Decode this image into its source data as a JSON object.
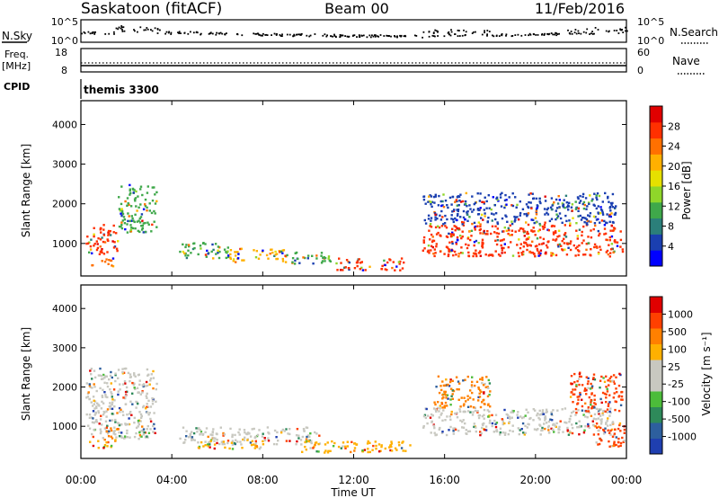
{
  "header": {
    "station": "Saskatoon (fitACF)",
    "beam": "Beam 00",
    "date": "11/Feb/2016"
  },
  "noise_panel": {
    "left_label": "N.Sky",
    "right_label": "N.Search",
    "left_ticks": [
      "10^5",
      "10^0"
    ],
    "right_ticks": [
      "10^5",
      "10^0"
    ]
  },
  "freq_panel": {
    "left_label_1": "Freq.",
    "left_label_2": "[MHz]",
    "right_label": "Nave",
    "left_ticks": [
      "18",
      "8"
    ],
    "right_ticks": [
      "60",
      "0"
    ]
  },
  "cpid_panel": {
    "label": "CPID",
    "value": "themis 3300"
  },
  "x_axis": {
    "ticks": [
      "00:00",
      "04:00",
      "08:00",
      "12:00",
      "16:00",
      "20:00",
      "00:00"
    ],
    "label": "Time UT"
  },
  "chart_data": [
    {
      "type": "heatmap",
      "name": "power",
      "ylabel": "Slant Range [km]",
      "yticks": [
        1000,
        2000,
        3000,
        4000
      ],
      "ylim": [
        180,
        4600
      ],
      "xlim_hours": [
        0,
        24
      ],
      "colorbar": {
        "label": "Power [dB]",
        "ticks": [
          4,
          8,
          12,
          16,
          20,
          24,
          28
        ],
        "colors": [
          "#0000ff",
          "#1a3fb0",
          "#2b7f7a",
          "#3fa84a",
          "#8fd62a",
          "#e6e000",
          "#ffb000",
          "#ff7000",
          "#ff3000",
          "#e00000"
        ]
      },
      "regions": [
        {
          "t0": 0.2,
          "t1": 1.6,
          "r0": 750,
          "r1": 1500,
          "core": "#ff3000"
        },
        {
          "t0": 1.6,
          "t1": 3.3,
          "r0": 1300,
          "r1": 2500,
          "core": "#3fa84a"
        },
        {
          "t0": 0.3,
          "t1": 1.4,
          "r0": 450,
          "r1": 650,
          "core": "#ff7000"
        },
        {
          "t0": 4.3,
          "t1": 6.5,
          "r0": 650,
          "r1": 1050,
          "core": "#3fa84a"
        },
        {
          "t0": 6.5,
          "t1": 9.0,
          "r0": 550,
          "r1": 900,
          "core": "#ffb000"
        },
        {
          "t0": 9.0,
          "t1": 11.0,
          "r0": 500,
          "r1": 800,
          "core": "#3fa84a"
        },
        {
          "t0": 11.2,
          "t1": 14.2,
          "r0": 350,
          "r1": 650,
          "core": "#ff3000"
        },
        {
          "t0": 15.0,
          "t1": 23.8,
          "r0": 700,
          "r1": 1500,
          "core": "#ff3000"
        },
        {
          "t0": 15.0,
          "t1": 23.5,
          "r0": 1500,
          "r1": 2300,
          "core": "#1a3fb0"
        }
      ]
    },
    {
      "type": "heatmap",
      "name": "velocity",
      "ylabel": "Slant Range [km]",
      "yticks": [
        1000,
        2000,
        3000,
        4000
      ],
      "ylim": [
        180,
        4600
      ],
      "xlim_hours": [
        0,
        24
      ],
      "colorbar": {
        "label": "Velocity [m s⁻¹]",
        "ticks": [
          1000,
          500,
          100,
          25,
          -25,
          -100,
          -500,
          -1000
        ],
        "colors": [
          "#1f3fb0",
          "#2d5f9e",
          "#2e8a5a",
          "#4cbc3a",
          "#c8c8c0",
          "#c8c8c0",
          "#ffb000",
          "#ff8000",
          "#ff4000",
          "#e00000"
        ]
      },
      "regions": [
        {
          "t0": 0.2,
          "t1": 3.3,
          "r0": 700,
          "r1": 2500,
          "core": "#c8c8c0"
        },
        {
          "t0": 1.0,
          "t1": 1.7,
          "r0": 650,
          "r1": 1000,
          "core": "#ff8000"
        },
        {
          "t0": 0.3,
          "t1": 1.4,
          "r0": 450,
          "r1": 650,
          "core": "#ffb000"
        },
        {
          "t0": 4.3,
          "t1": 10.5,
          "r0": 550,
          "r1": 1000,
          "core": "#c8c8c0"
        },
        {
          "t0": 5.0,
          "t1": 8.0,
          "r0": 450,
          "r1": 650,
          "core": "#ffb000"
        },
        {
          "t0": 9.5,
          "t1": 14.5,
          "r0": 350,
          "r1": 650,
          "core": "#ffb000"
        },
        {
          "t0": 15.0,
          "t1": 23.5,
          "r0": 800,
          "r1": 1500,
          "core": "#c8c8c0"
        },
        {
          "t0": 15.5,
          "t1": 18.0,
          "r0": 1500,
          "r1": 2300,
          "core": "#ff8000"
        },
        {
          "t0": 21.5,
          "t1": 23.8,
          "r0": 1400,
          "r1": 2400,
          "core": "#ff4000"
        },
        {
          "t0": 22.5,
          "t1": 23.9,
          "r0": 500,
          "r1": 1100,
          "core": "#ff4000"
        }
      ]
    }
  ]
}
